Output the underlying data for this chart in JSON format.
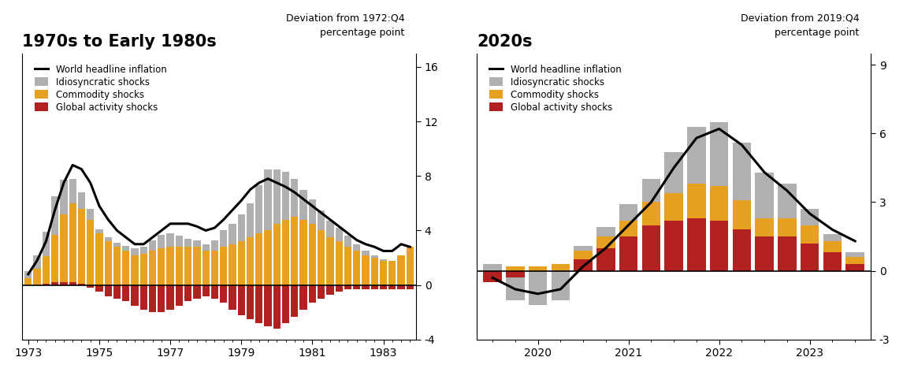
{
  "chart1": {
    "title": "1970s to Early 1980s",
    "subtitle": "Deviation from 1972:Q4\npercentage point",
    "ylim": [
      -4,
      17
    ],
    "yticks": [
      -4,
      0,
      4,
      8,
      12,
      16
    ],
    "idio": [
      0.5,
      1.0,
      1.8,
      2.8,
      2.5,
      1.8,
      1.2,
      0.8,
      0.3,
      0.3,
      0.3,
      0.4,
      0.5,
      0.5,
      0.8,
      1.0,
      1.0,
      0.8,
      0.6,
      0.5,
      0.5,
      0.8,
      1.2,
      1.5,
      2.0,
      2.5,
      3.5,
      4.5,
      4.0,
      3.5,
      2.8,
      2.2,
      1.8,
      1.5,
      1.2,
      1.0,
      0.8,
      0.5,
      0.3,
      0.2,
      0.1,
      0.0,
      0.0,
      0.0
    ],
    "commodity": [
      0.5,
      1.2,
      2.0,
      3.5,
      5.0,
      5.8,
      5.5,
      4.8,
      3.8,
      3.2,
      2.8,
      2.5,
      2.2,
      2.3,
      2.5,
      2.7,
      2.8,
      2.8,
      2.8,
      2.8,
      2.5,
      2.5,
      2.8,
      3.0,
      3.2,
      3.5,
      3.8,
      4.0,
      4.5,
      4.8,
      5.0,
      4.8,
      4.5,
      4.0,
      3.5,
      3.2,
      2.8,
      2.5,
      2.2,
      2.0,
      1.8,
      1.8,
      2.2,
      2.8
    ],
    "global_act": [
      0.0,
      0.0,
      0.1,
      0.2,
      0.2,
      0.2,
      0.1,
      -0.2,
      -0.5,
      -0.8,
      -1.0,
      -1.2,
      -1.5,
      -1.8,
      -2.0,
      -2.0,
      -1.8,
      -1.5,
      -1.2,
      -1.0,
      -0.8,
      -1.0,
      -1.3,
      -1.8,
      -2.2,
      -2.5,
      -2.8,
      -3.0,
      -3.2,
      -2.8,
      -2.3,
      -1.8,
      -1.3,
      -1.0,
      -0.7,
      -0.5,
      -0.3,
      -0.3,
      -0.3,
      -0.3,
      -0.3,
      -0.3,
      -0.3,
      -0.3
    ],
    "line": [
      0.8,
      1.8,
      3.2,
      5.5,
      7.5,
      8.8,
      8.5,
      7.5,
      5.8,
      4.8,
      4.0,
      3.5,
      3.0,
      3.0,
      3.5,
      4.0,
      4.5,
      4.5,
      4.5,
      4.3,
      4.0,
      4.2,
      4.8,
      5.5,
      6.2,
      7.0,
      7.5,
      7.8,
      7.5,
      7.2,
      6.8,
      6.3,
      5.8,
      5.3,
      4.8,
      4.3,
      3.8,
      3.3,
      3.0,
      2.8,
      2.5,
      2.5,
      3.0,
      2.8
    ],
    "xtick_labels": [
      "1973",
      "1975",
      "1977",
      "1979",
      "1981",
      "1983"
    ],
    "xtick_positions": [
      0,
      8,
      16,
      24,
      32,
      40
    ],
    "n": 44
  },
  "chart2": {
    "title": "2020s",
    "subtitle": "Deviation from 2019:Q4\npercentage point",
    "ylim": [
      -3,
      9.5
    ],
    "yticks": [
      -3,
      0,
      3,
      6,
      9
    ],
    "idio": [
      0.3,
      -1.0,
      -1.5,
      -1.3,
      0.2,
      0.4,
      0.7,
      1.0,
      1.8,
      2.5,
      2.8,
      2.5,
      2.0,
      1.5,
      0.7,
      0.3,
      0.2
    ],
    "commodity": [
      0.0,
      0.2,
      0.2,
      0.3,
      0.4,
      0.5,
      0.7,
      1.0,
      1.2,
      1.5,
      1.5,
      1.3,
      0.8,
      0.8,
      0.8,
      0.5,
      0.3
    ],
    "global_act": [
      -0.5,
      -0.3,
      0.0,
      0.0,
      0.5,
      1.0,
      1.5,
      2.0,
      2.2,
      2.3,
      2.2,
      1.8,
      1.5,
      1.5,
      1.2,
      0.8,
      0.3
    ],
    "line": [
      -0.3,
      -0.8,
      -1.0,
      -0.8,
      0.2,
      1.0,
      2.0,
      3.0,
      4.5,
      5.8,
      6.2,
      5.5,
      4.3,
      3.5,
      2.5,
      1.8,
      1.3
    ],
    "xtick_labels": [
      "2020",
      "2021",
      "2022",
      "2023"
    ],
    "xtick_positions": [
      2,
      6,
      10,
      14
    ],
    "n": 17
  },
  "colors": {
    "idio": "#b0b0b0",
    "commodity": "#e8a020",
    "global_act": "#b22020",
    "line": "#000000"
  },
  "legend_labels": [
    "World headline inflation",
    "Idiosyncratic shocks",
    "Commodity shocks",
    "Global activity shocks"
  ]
}
